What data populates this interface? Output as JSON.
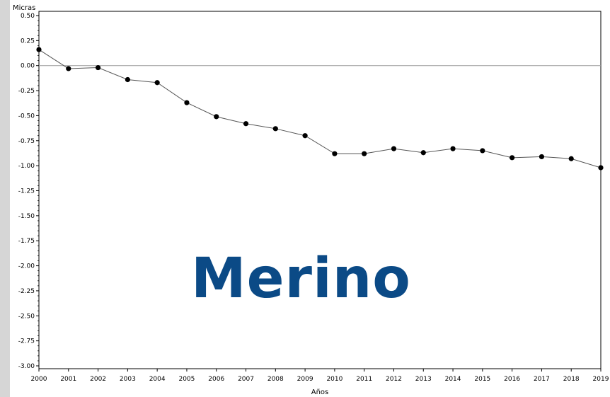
{
  "chart_data": {
    "type": "line",
    "ylabel": "Micras",
    "xlabel": "Años",
    "overlay_text": "Merino",
    "x": [
      2000,
      2001,
      2002,
      2003,
      2004,
      2005,
      2006,
      2007,
      2008,
      2009,
      2010,
      2011,
      2012,
      2013,
      2014,
      2015,
      2016,
      2017,
      2018,
      2019
    ],
    "series": [
      {
        "values": [
          0.16,
          -0.03,
          -0.02,
          -0.14,
          -0.17,
          -0.37,
          -0.51,
          -0.58,
          -0.63,
          -0.7,
          -0.88,
          -0.88,
          -0.83,
          -0.87,
          -0.83,
          -0.85,
          -0.92,
          -0.91,
          -0.93,
          -1.02
        ]
      }
    ],
    "xlim": [
      2000,
      2019
    ],
    "ylim": [
      -3.0,
      0.5
    ],
    "yticks": [
      "0.50",
      "0.25",
      "0.00",
      "-0.25",
      "-0.50",
      "-0.75",
      "-1.00",
      "-1.25",
      "-1.50",
      "-1.75",
      "-2.00",
      "-2.25",
      "-2.50",
      "-2.75",
      "-3.00"
    ],
    "xticks": [
      "2000",
      "2001",
      "2002",
      "2003",
      "2004",
      "2005",
      "2006",
      "2007",
      "2008",
      "2009",
      "2010",
      "2011",
      "2012",
      "2013",
      "2014",
      "2015",
      "2016",
      "2017",
      "2018",
      "2019"
    ],
    "reference_line": 0.0,
    "grid": false,
    "colors": {
      "line": "#555555",
      "marker": "#000000",
      "reference": "#999999",
      "overlay": "#0b4a86"
    }
  }
}
